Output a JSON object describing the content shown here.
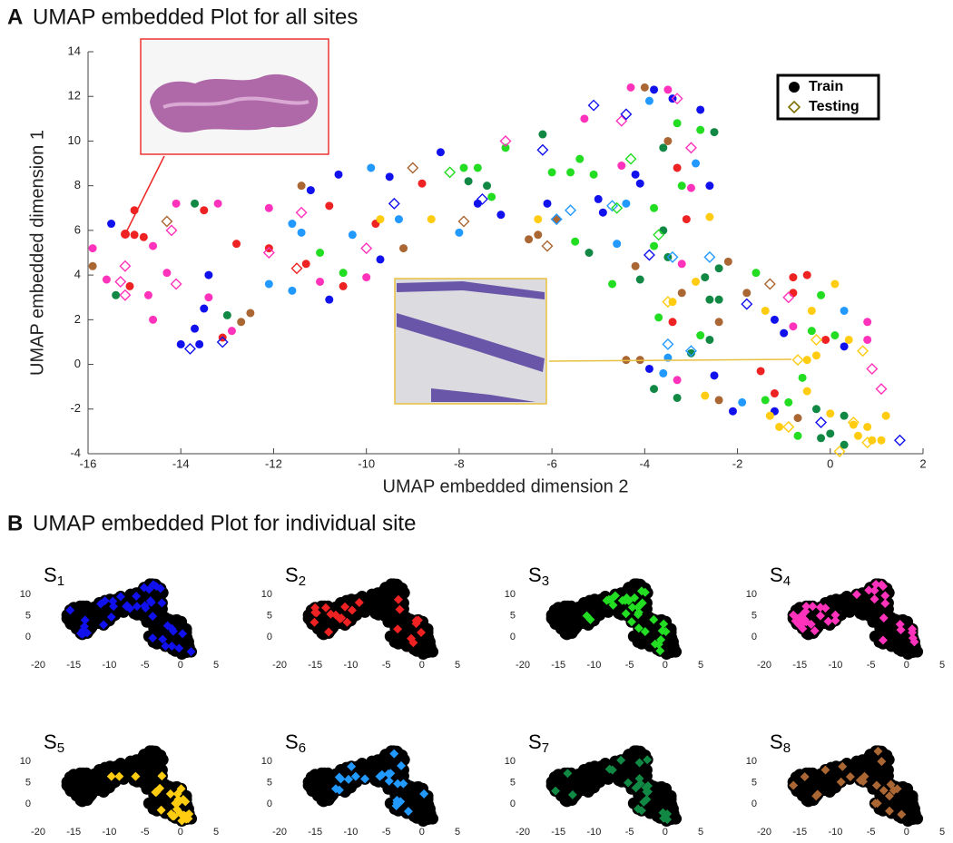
{
  "panels": [
    {
      "label": "A",
      "title": "UMAP embedded Plot for all sites"
    },
    {
      "label": "B",
      "title": "UMAP embedded Plot for individual site"
    }
  ],
  "chart_data": [
    {
      "type": "scatter",
      "xlabel": "UMAP embedded dimension 2",
      "ylabel": "UMAP embedded dimension 1",
      "xlim": [
        -16,
        2
      ],
      "ylim": [
        -4,
        14
      ],
      "xticks": [
        -16,
        -14,
        -12,
        -10,
        -8,
        -6,
        -4,
        -2,
        0,
        2
      ],
      "yticks": [
        -4,
        -2,
        0,
        2,
        4,
        6,
        8,
        10,
        12,
        14
      ],
      "legend": "upper right",
      "series": [
        {
          "name": "Train",
          "marker": "circle",
          "legend_color": "#000",
          "x": [
            -15.9,
            -15.9,
            -15.5,
            -15.4,
            -15.1,
            -15,
            -15,
            -15.6,
            -14.7,
            -14.6,
            -14.3,
            -14.1,
            -14,
            -13.7,
            -13.6,
            -13.5,
            -13.4,
            -13.5,
            -13.4,
            -13.1,
            -13,
            -12.9,
            -13.2,
            -12.8,
            -13.7,
            -14.6,
            -12.5,
            -12.7,
            -14.8,
            -12.1,
            -12.1,
            -12.1,
            -11.6,
            -11.4,
            -11.2,
            -11.4,
            -11.6,
            -11.3,
            -11,
            -11,
            -10.8,
            -10.8,
            -10.5,
            -10.5,
            -10.3,
            -10.6,
            -10,
            -9.9,
            -9.8,
            -9.7,
            -9.5,
            -9.7,
            -9.3,
            -9.2,
            -8.8,
            -8.6,
            -8.4,
            -8,
            -7.9,
            -7.8,
            -7.6,
            -7.6,
            -7.4,
            -7.3,
            -7.1,
            -7,
            -6.5,
            -6.3,
            -6.3,
            -6.2,
            -6,
            -6.1,
            -5.9,
            -5.6,
            -5.5,
            -5.4,
            -5.3,
            -5.2,
            -5.1,
            -5,
            -4.9,
            -4.6,
            -4.5,
            -4.4,
            -4.3,
            -4.2,
            -4.2,
            -4.1,
            -4,
            -3.9,
            -3.8,
            -3.8,
            -3.6,
            -3.5,
            -3.5,
            -3.4,
            -3.3,
            -3.3,
            -3.2,
            -3.1,
            -3,
            -2.9,
            -2.8,
            -2.8,
            -2.6,
            -2.6,
            -2.5,
            -3.6,
            -3.8,
            -4.1,
            -3.5,
            -3.2,
            -3.2,
            -2.9,
            -2.7,
            -2.6,
            -2.4,
            -2.4,
            -4.7,
            -3.7,
            -3.4,
            -2.2,
            -1.8,
            -1.4,
            -1.6,
            -1.2,
            -1,
            -0.8,
            -0.8,
            -0.5,
            -0.8,
            -0.4,
            -0.4,
            -0.2,
            -0.1,
            0.1,
            0.3,
            0.1,
            0.4,
            0.8,
            0.8,
            0.3,
            -0.3,
            -0.5,
            -0.6,
            -0.5,
            -0.9,
            -1.2,
            -1.4,
            -1.2,
            -1.1,
            -1.3,
            -0.7,
            -0.7,
            -0.3,
            0,
            -0.2,
            0,
            0.3,
            0.3,
            0.5,
            0.6,
            0.8,
            0.9,
            1.2,
            1.1,
            -2.1,
            -1.9,
            -2.4,
            -2.7,
            -3.3,
            -3.6,
            -3.8,
            -3.3,
            -4.1,
            -3.9,
            -3.5,
            -4.4,
            -3,
            -2.5,
            -1.5,
            -2.6,
            -3.4,
            -2.4,
            -2.8
          ],
          "y": [
            5.2,
            4.4,
            6.3,
            3.1,
            3.5,
            6.9,
            5.8,
            3.8,
            3.1,
            5.3,
            4.1,
            7.2,
            0.9,
            7.2,
            0.9,
            6.9,
            4,
            2.5,
            3,
            1.2,
            2.2,
            1.5,
            7.2,
            5.4,
            1.6,
            2,
            2.3,
            1.9,
            5.7,
            7,
            5.2,
            3.6,
            6.3,
            8,
            7.8,
            5.9,
            3.3,
            4.5,
            5,
            3.7,
            2.9,
            7.1,
            3.5,
            4.1,
            5.8,
            8.5,
            3.9,
            8.8,
            6.3,
            4.7,
            8.4,
            6.5,
            6.5,
            5.2,
            8.1,
            6.5,
            9.5,
            5.9,
            8.8,
            8.2,
            8.8,
            7.2,
            8,
            7.5,
            6.7,
            9.7,
            5.6,
            6.5,
            5.8,
            10.3,
            8.6,
            7.2,
            6.5,
            8.6,
            5.5,
            9.2,
            11,
            5,
            8.5,
            7.4,
            6.8,
            5.4,
            8.9,
            7.2,
            12.4,
            8.5,
            4.4,
            8.1,
            12.4,
            11.8,
            7,
            12.3,
            9.7,
            12.3,
            10,
            11.9,
            10.8,
            8.8,
            8,
            6.5,
            7.9,
            9,
            11.4,
            10.5,
            6.6,
            8,
            10.4,
            6,
            5.3,
            3.8,
            4.8,
            4.5,
            3.2,
            3.7,
            3.9,
            2.9,
            4.3,
            1.9,
            3.6,
            2.1,
            1.9,
            4.6,
            3.2,
            2.4,
            4.1,
            2,
            1.4,
            1.7,
            3.9,
            4,
            3.2,
            2.4,
            1.5,
            3.1,
            1.1,
            3.6,
            2.4,
            1.3,
            1.1,
            1.9,
            1.1,
            0.8,
            0.4,
            0.2,
            -0.6,
            -1.2,
            -1.7,
            -1.3,
            -1.6,
            -2.1,
            -2.8,
            -2.3,
            -2.4,
            -3.2,
            -2,
            -2.2,
            -3.3,
            -3.1,
            -2.3,
            -3.6,
            -2.7,
            -3.2,
            -2.8,
            -3.4,
            -2.3,
            -3.4,
            -2.1,
            -1.7,
            -1.6,
            -1.4,
            -0.7,
            -0.4,
            -1.1,
            -1.5,
            0.2,
            -0.2,
            0.3,
            0.2,
            0.5,
            -0.5,
            -0.3,
            1.1,
            2.8,
            2.9,
            1.3
          ],
          "colors": [
            "#f3b",
            "#a63",
            "#11e",
            "#184",
            "#e22",
            "#e22",
            "#e22",
            "#f3b",
            "#f3b",
            "#f3b",
            "#f3b",
            "#f3b",
            "#11e",
            "#184",
            "#11e",
            "#e22",
            "#11e",
            "#11e",
            "#f3b",
            "#e22",
            "#184",
            "#f3b",
            "#f3b",
            "#e22",
            "#11e",
            "#f3b",
            "#a63",
            "#a63",
            "#e22",
            "#f3b",
            "#e22",
            "#29f",
            "#29f",
            "#a63",
            "#11e",
            "#29f",
            "#29f",
            "#e22",
            "#2d2",
            "#f3b",
            "#11e",
            "#e22",
            "#e22",
            "#2d2",
            "#29f",
            "#11e",
            "#f3b",
            "#29f",
            "#e22",
            "#11e",
            "#11e",
            "#fc1",
            "#29f",
            "#a63",
            "#e22",
            "#fc1",
            "#11e",
            "#29f",
            "#2d2",
            "#184",
            "#2d2",
            "#11e",
            "#184",
            "#2d2",
            "#11e",
            "#2d2",
            "#a63",
            "#fc1",
            "#a63",
            "#184",
            "#2d2",
            "#11e",
            "#a63",
            "#2d2",
            "#2d2",
            "#2d2",
            "#f3b",
            "#184",
            "#2d2",
            "#11e",
            "#11e",
            "#29f",
            "#f3b",
            "#29f",
            "#f3b",
            "#11e",
            "#a63",
            "#11e",
            "#a63",
            "#29f",
            "#2d2",
            "#11e",
            "#184",
            "#f3b",
            "#a63",
            "#11e",
            "#2d2",
            "#e22",
            "#2d2",
            "#e22",
            "#f3b",
            "#29f",
            "#11e",
            "#2d2",
            "#fc1",
            "#11e",
            "#184",
            "#184",
            "#2d2",
            "#184",
            "#184",
            "#f3b",
            "#a63",
            "#fc1",
            "#184",
            "#184",
            "#184",
            "#a63",
            "#2d2",
            "#2d2",
            "#e22",
            "#a63",
            "#a63",
            "#fc1",
            "#2d2",
            "#11e",
            "#11e",
            "#f3b",
            "#e22",
            "#e22",
            "#e22",
            "#fc1",
            "#2d2",
            "#2d2",
            "#e22",
            "#fc1",
            "#29f",
            "#2d2",
            "#fc1",
            "#f3b",
            "#f3b",
            "#11e",
            "#fc1",
            "#fc1",
            "#2d2",
            "#fc1",
            "#2d2",
            "#e22",
            "#2d2",
            "#11e",
            "#fc1",
            "#fc1",
            "#a63",
            "#2d2",
            "#184",
            "#fc1",
            "#184",
            "#184",
            "#184",
            "#184",
            "#fc1",
            "#fc1",
            "#fc1",
            "#fc1",
            "#fc1",
            "#fc1",
            "#11e",
            "#29f",
            "#a63",
            "#fc1",
            "#f3b",
            "#29f",
            "#184",
            "#184",
            "#a63",
            "#11e",
            "#29f",
            "#a63",
            "#184",
            "#11e",
            "#e22",
            "#184",
            "#fc1",
            "#184",
            "#2d2"
          ]
        },
        {
          "name": "Testing",
          "marker": "diamond",
          "legend_color": "#807000",
          "x": [
            -15.3,
            -15.2,
            -15.2,
            -14.3,
            -14.2,
            -14.1,
            -13.8,
            -13.1,
            -12.1,
            -11.5,
            -11.4,
            -10,
            -9.4,
            -9,
            -8.2,
            -7.9,
            -7.5,
            -7,
            -6.2,
            -6.1,
            -5.9,
            -5.6,
            -5.1,
            -4.7,
            -4.5,
            -4.4,
            -4.3,
            -4.6,
            -3.7,
            -3.9,
            -3.4,
            -3.3,
            -3,
            -3.5,
            -2.6,
            -3.5,
            -3,
            -1.8,
            -1.3,
            -0.9,
            -0.3,
            0.7,
            0.9,
            1.1,
            -0.2,
            0.5,
            0.8,
            1.5,
            -0.9,
            0.2,
            -0.7
          ],
          "y": [
            3.7,
            4.4,
            3.1,
            6.4,
            6,
            3.6,
            0.7,
            1,
            5,
            4.3,
            6.8,
            5.2,
            7.2,
            8.8,
            8.6,
            6.4,
            7.4,
            10,
            9.6,
            5.3,
            6.5,
            6.9,
            11.6,
            7.1,
            10.9,
            11.2,
            9.2,
            7,
            5.8,
            4.9,
            4.8,
            11.9,
            9.7,
            2.8,
            4.8,
            0.9,
            0.6,
            2.7,
            3.6,
            3,
            1.1,
            0.6,
            -0.2,
            -1.1,
            -2.6,
            -2.6,
            -3.5,
            -3.4,
            -2.8,
            -3.9,
            0.2
          ],
          "colors": [
            "#f3b",
            "#f3b",
            "#f3b",
            "#a63",
            "#f3b",
            "#f3b",
            "#11e",
            "#11e",
            "#f3b",
            "#e22",
            "#f3b",
            "#f3b",
            "#11e",
            "#a63",
            "#2d2",
            "#a63",
            "#11e",
            "#f3b",
            "#11e",
            "#a63",
            "#29f",
            "#29f",
            "#11e",
            "#29f",
            "#f3b",
            "#11e",
            "#2d2",
            "#2d2",
            "#2d2",
            "#11e",
            "#29f",
            "#f3b",
            "#f3b",
            "#fc1",
            "#29f",
            "#29f",
            "#29f",
            "#11e",
            "#a63",
            "#f3b",
            "#fc1",
            "#fc1",
            "#f3b",
            "#f3b",
            "#11e",
            "#fc1",
            "#fc1",
            "#11e",
            "#fc1",
            "#fc1",
            "#fc1"
          ]
        }
      ]
    },
    {
      "type": "site",
      "title": {
        "text": "S",
        "sub": "1"
      },
      "color": "#11e",
      "xlim": [
        -20,
        5
      ],
      "ylim": [
        -4,
        13
      ],
      "xticks": [
        -20,
        -15,
        -10,
        -5,
        0,
        5
      ],
      "yticks": [
        0,
        5,
        10
      ]
    },
    {
      "type": "site",
      "title": {
        "text": "S",
        "sub": "2"
      },
      "color": "#e22",
      "xlim": [
        -20,
        5
      ],
      "ylim": [
        -4,
        13
      ],
      "xticks": [
        -20,
        -15,
        -10,
        -5,
        0,
        5
      ],
      "yticks": [
        0,
        5,
        10
      ]
    },
    {
      "type": "site",
      "title": {
        "text": "S",
        "sub": "3"
      },
      "color": "#2d2",
      "xlim": [
        -20,
        5
      ],
      "ylim": [
        -4,
        13
      ],
      "xticks": [
        -20,
        -15,
        -10,
        -5,
        0,
        5
      ],
      "yticks": [
        0,
        5,
        10
      ]
    },
    {
      "type": "site",
      "title": {
        "text": "S",
        "sub": "4"
      },
      "color": "#f3b",
      "xlim": [
        -20,
        5
      ],
      "ylim": [
        -4,
        13
      ],
      "xticks": [
        -20,
        -15,
        -10,
        -5,
        0,
        5
      ],
      "yticks": [
        0,
        5,
        10
      ]
    },
    {
      "type": "site",
      "title": {
        "text": "S",
        "sub": "5"
      },
      "color": "#fc1",
      "xlim": [
        -20,
        5
      ],
      "ylim": [
        -4,
        13
      ],
      "xticks": [
        -20,
        -15,
        -10,
        -5,
        0,
        5
      ],
      "yticks": [
        0,
        5,
        10
      ]
    },
    {
      "type": "site",
      "title": {
        "text": "S",
        "sub": "6"
      },
      "color": "#29f",
      "xlim": [
        -20,
        5
      ],
      "ylim": [
        -4,
        13
      ],
      "xticks": [
        -20,
        -15,
        -10,
        -5,
        0,
        5
      ],
      "yticks": [
        0,
        5,
        10
      ]
    },
    {
      "type": "site",
      "title": {
        "text": "S",
        "sub": "7"
      },
      "color": "#184",
      "xlim": [
        -20,
        5
      ],
      "ylim": [
        -4,
        13
      ],
      "xticks": [
        -20,
        -15,
        -10,
        -5,
        0,
        5
      ],
      "yticks": [
        0,
        5,
        10
      ]
    },
    {
      "type": "site",
      "title": {
        "text": "S",
        "sub": "8"
      },
      "color": "#a63",
      "xlim": [
        -20,
        5
      ],
      "ylim": [
        -4,
        13
      ],
      "xticks": [
        -20,
        -15,
        -10,
        -5,
        0,
        5
      ],
      "yticks": [
        0,
        5,
        10
      ]
    }
  ]
}
